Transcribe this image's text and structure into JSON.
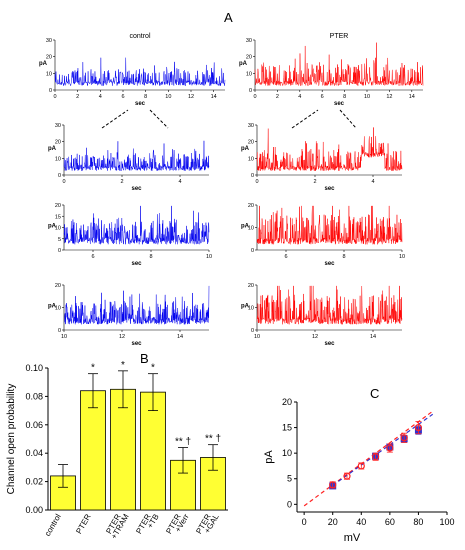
{
  "figure": {
    "panel_labels": {
      "a": "A",
      "b": "B",
      "c": "C"
    }
  },
  "chart_data": [
    {
      "id": "traces",
      "type": "line",
      "description_units": {
        "x": "sec",
        "y": "pA"
      },
      "ylabel": "pA",
      "xlabel": "sec",
      "panels": [
        {
          "key": "control_full",
          "title": "control",
          "color": "#0000ee",
          "xlim": [
            0,
            15
          ],
          "ylim": [
            0,
            30
          ],
          "xticks": [
            0,
            2,
            4,
            6,
            8,
            10,
            12,
            14
          ],
          "yticks": [
            0,
            10,
            20,
            30
          ],
          "noise_amp": 1.0
        },
        {
          "key": "pter_full",
          "title": "PTER",
          "color": "#ff0000",
          "xlim": [
            0,
            15
          ],
          "ylim": [
            0,
            30
          ],
          "xticks": [
            0,
            2,
            4,
            6,
            8,
            10,
            12,
            14
          ],
          "yticks": [
            0,
            10,
            20,
            30
          ],
          "noise_amp": 1.45
        },
        {
          "key": "control_z1",
          "title": "",
          "color": "#0000ee",
          "xlim": [
            0,
            5
          ],
          "ylim": [
            0,
            30
          ],
          "xticks": [
            0,
            2,
            4
          ],
          "yticks": [
            0,
            10,
            20,
            30
          ],
          "noise_amp": 1.0
        },
        {
          "key": "pter_z1",
          "title": "",
          "color": "#ff0000",
          "xlim": [
            0,
            5
          ],
          "ylim": [
            0,
            30
          ],
          "xticks": [
            0,
            2,
            4
          ],
          "yticks": [
            0,
            10,
            20,
            30
          ],
          "noise_amp": 1.4
        },
        {
          "key": "control_z2",
          "title": "",
          "color": "#0000ee",
          "xlim": [
            5,
            10
          ],
          "ylim": [
            0,
            20
          ],
          "xticks": [
            6,
            8,
            10
          ],
          "yticks": [
            0,
            5,
            10,
            15,
            20
          ],
          "noise_amp": 1.0
        },
        {
          "key": "pter_z2",
          "title": "",
          "color": "#ff0000",
          "xlim": [
            5,
            10
          ],
          "ylim": [
            0,
            20
          ],
          "xticks": [
            6,
            8,
            10
          ],
          "yticks": [
            0,
            10,
            20
          ],
          "noise_amp": 1.4
        },
        {
          "key": "control_z3",
          "title": "",
          "color": "#0000ee",
          "xlim": [
            10,
            15
          ],
          "ylim": [
            0,
            20
          ],
          "xticks": [
            10,
            12,
            14
          ],
          "yticks": [
            0,
            10,
            20
          ],
          "noise_amp": 1.0
        },
        {
          "key": "pter_z3",
          "title": "",
          "color": "#ff0000",
          "xlim": [
            10,
            15
          ],
          "ylim": [
            0,
            20
          ],
          "xticks": [
            10,
            12,
            14
          ],
          "yticks": [
            0,
            10,
            20
          ],
          "noise_amp": 1.4
        }
      ]
    },
    {
      "id": "open_probability",
      "type": "bar",
      "ylabel": "Channel open probability",
      "ylim": [
        0,
        0.1
      ],
      "yticks": [
        "0.00",
        "0.02",
        "0.04",
        "0.06",
        "0.08",
        "0.10"
      ],
      "bar_color": "#ffff33",
      "categories": [
        [
          "control"
        ],
        [
          "PTER"
        ],
        [
          "PTER",
          "+TRAM"
        ],
        [
          "PTER",
          "+TB"
        ],
        [
          "PTER",
          "+Verr"
        ],
        [
          "PTER",
          "+GAL"
        ]
      ],
      "values": [
        0.024,
        0.084,
        0.085,
        0.083,
        0.035,
        0.037
      ],
      "errors": [
        0.008,
        0.012,
        0.013,
        0.013,
        0.009,
        0.009
      ],
      "annotations": [
        "",
        "*",
        "*",
        "*",
        "** †",
        "** †"
      ]
    },
    {
      "id": "iv_curve",
      "type": "scatter",
      "xlabel": "mV",
      "ylabel": "pA",
      "xlim": [
        -5,
        100
      ],
      "ylim": [
        -1.5,
        20
      ],
      "xticks": [
        0,
        20,
        40,
        60,
        80,
        100
      ],
      "yticks": [
        0,
        5,
        10,
        15,
        20
      ],
      "series": [
        {
          "color": "#3333cc",
          "marker": "square",
          "x": [
            20,
            50,
            60,
            70,
            80
          ],
          "y": [
            3.6,
            9.4,
            11.2,
            12.8,
            14.5
          ],
          "err": [
            0.5,
            0.6,
            0.6,
            0.7,
            0.8
          ]
        },
        {
          "color": "#ff2222",
          "marker": "circle",
          "x": [
            20,
            30,
            40,
            50,
            60,
            70,
            80
          ],
          "y": [
            3.8,
            5.5,
            7.5,
            9.3,
            11.0,
            13.0,
            15.0
          ],
          "err": [
            0.6,
            0.6,
            0.6,
            0.7,
            0.8,
            0.9,
            1.2
          ]
        }
      ],
      "fits": [
        {
          "color": "#ff2222",
          "dash": true,
          "x": [
            0,
            90
          ],
          "y": [
            -0.3,
            18.2
          ]
        },
        {
          "color": "#3333cc",
          "dash": true,
          "x": [
            20,
            90
          ],
          "y": [
            3.7,
            17.6
          ]
        }
      ]
    }
  ]
}
